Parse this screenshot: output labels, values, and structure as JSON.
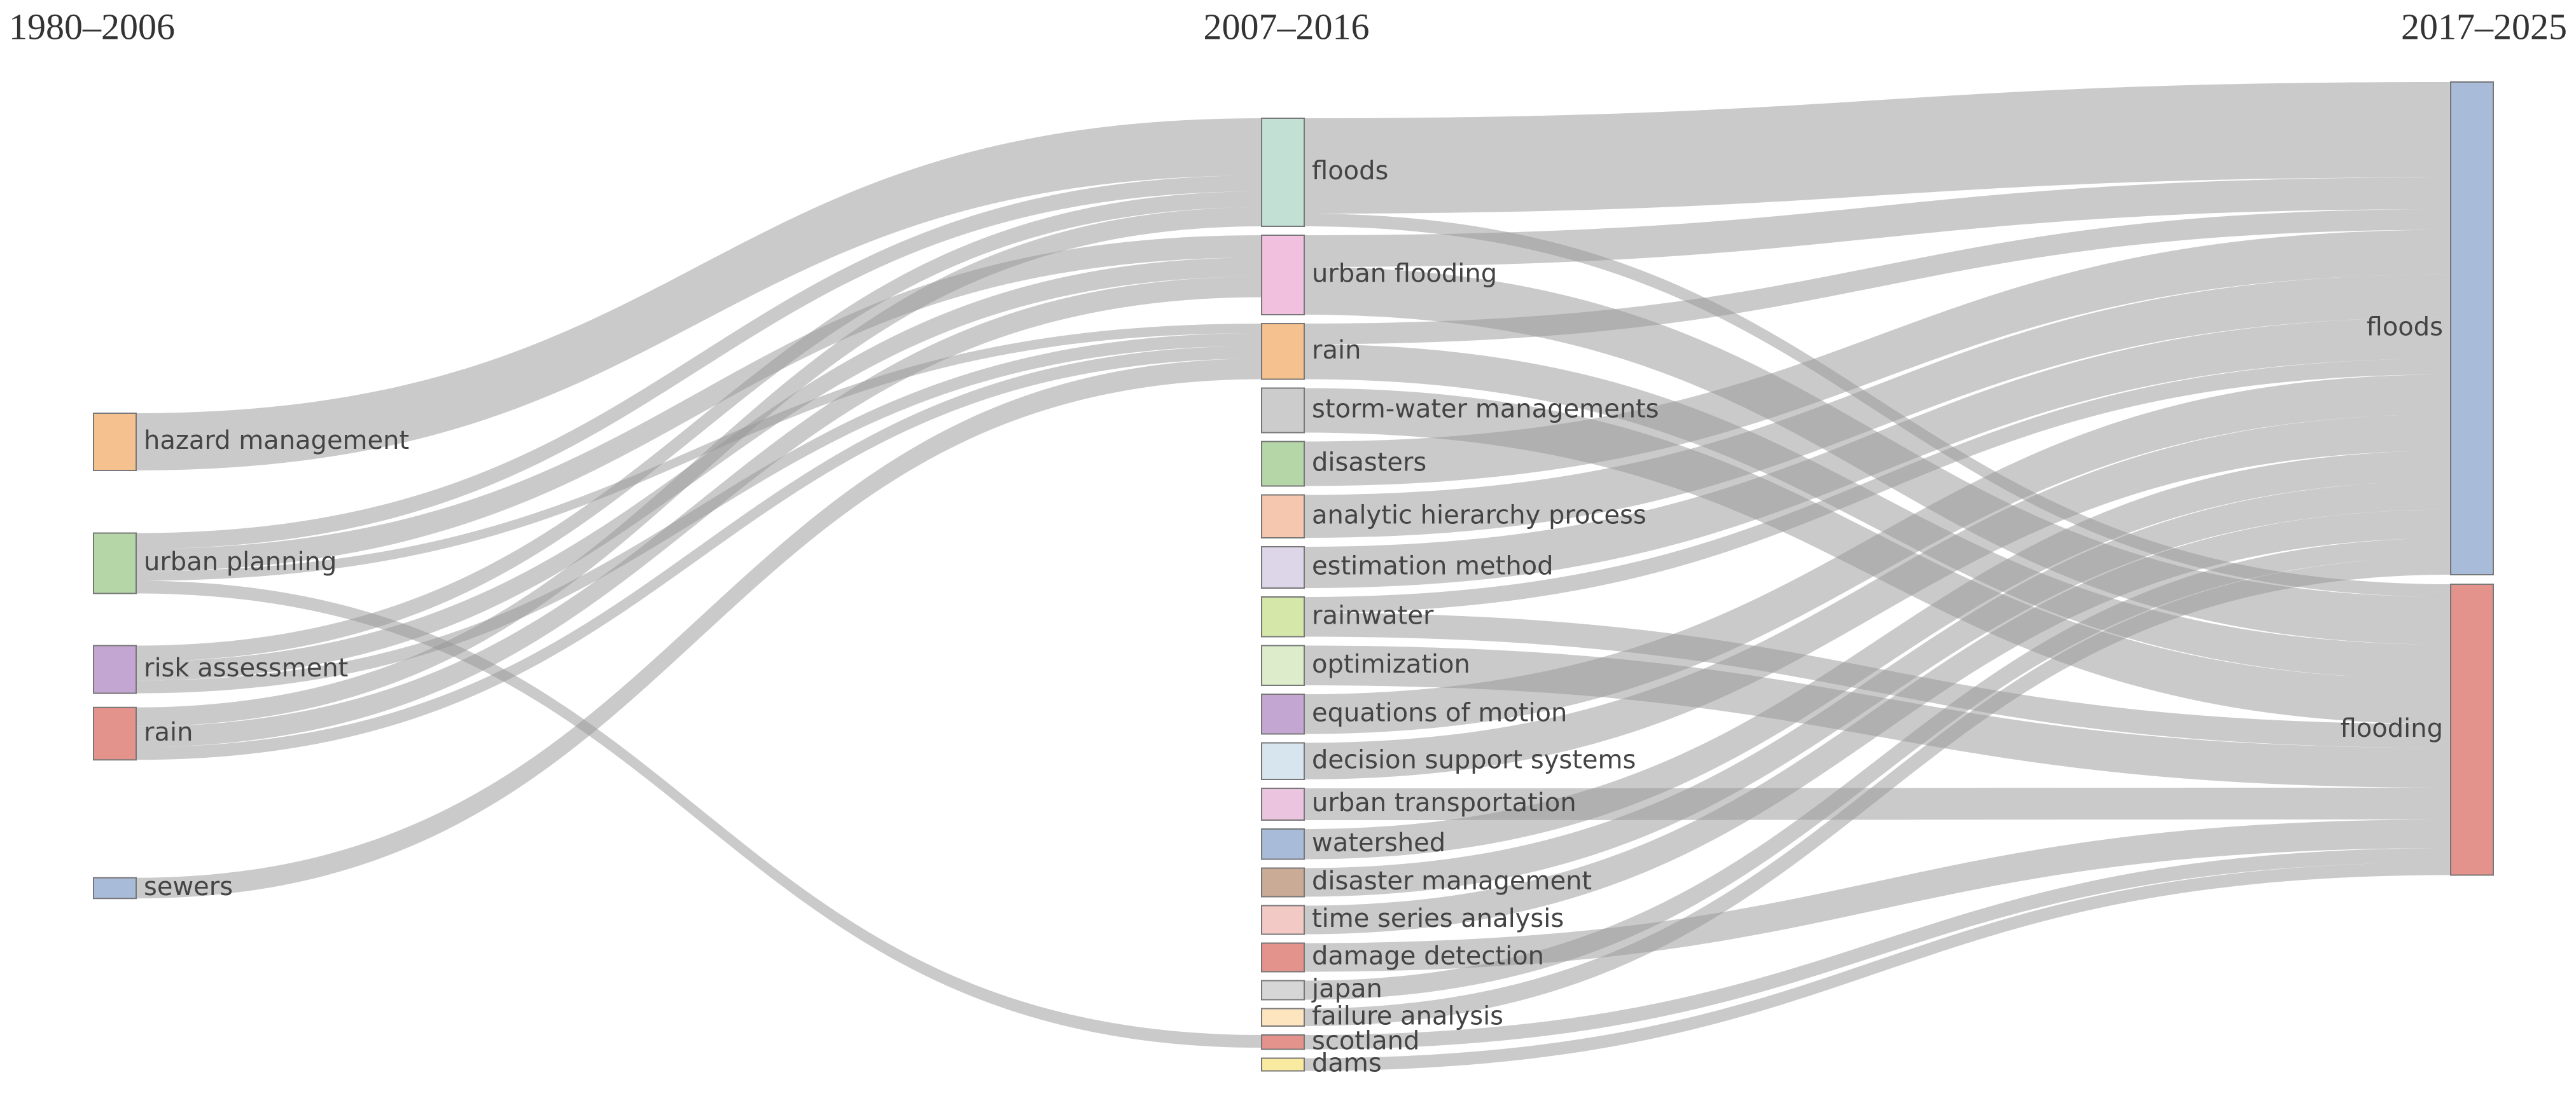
{
  "chart_data": {
    "type": "sankey",
    "columns": [
      {
        "title": "1980–2006",
        "nodes": [
          {
            "name": "hazard management",
            "color": "#f5c18f",
            "flows": [
              {
                "to": "floods",
                "value": 36
              }
            ]
          },
          {
            "name": "urban planning",
            "color": "#b5d6a7",
            "flows": [
              {
                "to": "floods",
                "value": 10
              },
              {
                "to": "urban flooding",
                "value": 14
              },
              {
                "to": "rain",
                "value": 6
              },
              {
                "to": "scotland",
                "value": 8
              }
            ]
          },
          {
            "name": "risk assessment",
            "color": "#c3a6d1",
            "flows": [
              {
                "to": "floods",
                "value": 10
              },
              {
                "to": "urban flooding",
                "value": 12
              },
              {
                "to": "rain",
                "value": 8
              }
            ]
          },
          {
            "name": "rain",
            "color": "#e3928c",
            "flows": [
              {
                "to": "floods",
                "value": 12
              },
              {
                "to": "urban flooding",
                "value": 13
              },
              {
                "to": "rain",
                "value": 8
              }
            ]
          },
          {
            "name": "sewers",
            "color": "#a8bbd8",
            "flows": [
              {
                "to": "rain",
                "value": 13
              }
            ]
          }
        ]
      },
      {
        "title": "2007–2016",
        "nodes": [
          {
            "name": "floods",
            "color": "#c3e0d4",
            "flows": [
              {
                "to": "floods",
                "value": 60
              },
              {
                "to": "flooding",
                "value": 8
              }
            ]
          },
          {
            "name": "urban flooding",
            "color": "#f0c0de",
            "flows": [
              {
                "to": "floods",
                "value": 20
              },
              {
                "to": "flooding",
                "value": 30
              }
            ]
          },
          {
            "name": "rain",
            "color": "#f5c18f",
            "flows": [
              {
                "to": "floods",
                "value": 13
              },
              {
                "to": "flooding",
                "value": 22
              }
            ]
          },
          {
            "name": "storm-water managements",
            "color": "#cccccc",
            "flows": [
              {
                "to": "flooding",
                "value": 28
              }
            ]
          },
          {
            "name": "disasters",
            "color": "#b5d6a7",
            "flows": [
              {
                "to": "floods",
                "value": 28
              }
            ]
          },
          {
            "name": "analytic hierarchy process",
            "color": "#f5c7ae",
            "flows": [
              {
                "to": "floods",
                "value": 27
              }
            ]
          },
          {
            "name": "estimation method",
            "color": "#ddd6e8",
            "flows": [
              {
                "to": "floods",
                "value": 26
              }
            ]
          },
          {
            "name": "rainwater",
            "color": "#d5e8aa",
            "flows": [
              {
                "to": "floods",
                "value": 10
              },
              {
                "to": "flooding",
                "value": 15
              }
            ]
          },
          {
            "name": "optimization",
            "color": "#ddeccb",
            "flows": [
              {
                "to": "flooding",
                "value": 25
              }
            ]
          },
          {
            "name": "equations of motion",
            "color": "#c3a6d1",
            "flows": [
              {
                "to": "floods",
                "value": 25
              }
            ]
          },
          {
            "name": "decision support systems",
            "color": "#d7e5ee",
            "flows": [
              {
                "to": "floods",
                "value": 23
              }
            ]
          },
          {
            "name": "urban transportation",
            "color": "#ebc5e0",
            "flows": [
              {
                "to": "flooding",
                "value": 20
              }
            ]
          },
          {
            "name": "watershed",
            "color": "#a8bbd8",
            "flows": [
              {
                "to": "floods",
                "value": 19
              }
            ]
          },
          {
            "name": "disaster management",
            "color": "#c9ab96",
            "flows": [
              {
                "to": "floods",
                "value": 18
              }
            ]
          },
          {
            "name": "time series analysis",
            "color": "#f2c9c4",
            "flows": [
              {
                "to": "floods",
                "value": 18
              }
            ]
          },
          {
            "name": "damage detection",
            "color": "#e3928c",
            "flows": [
              {
                "to": "flooding",
                "value": 18
              }
            ]
          },
          {
            "name": "japan",
            "color": "#d6d6d6",
            "flows": [
              {
                "to": "floods",
                "value": 12
              }
            ]
          },
          {
            "name": "failure analysis",
            "color": "#fde5c0",
            "flows": [
              {
                "to": "floods",
                "value": 11
              }
            ]
          },
          {
            "name": "scotland",
            "color": "#e3928c",
            "flows": [
              {
                "to": "flooding",
                "value": 9
              }
            ]
          },
          {
            "name": "dams",
            "color": "#f8ea9e",
            "flows": [
              {
                "to": "flooding",
                "value": 8
              }
            ]
          }
        ]
      },
      {
        "title": "2017–2025",
        "nodes": [
          {
            "name": "floods",
            "color": "#a8bbd8"
          },
          {
            "name": "flooding",
            "color": "#e3928c"
          }
        ]
      }
    ]
  }
}
